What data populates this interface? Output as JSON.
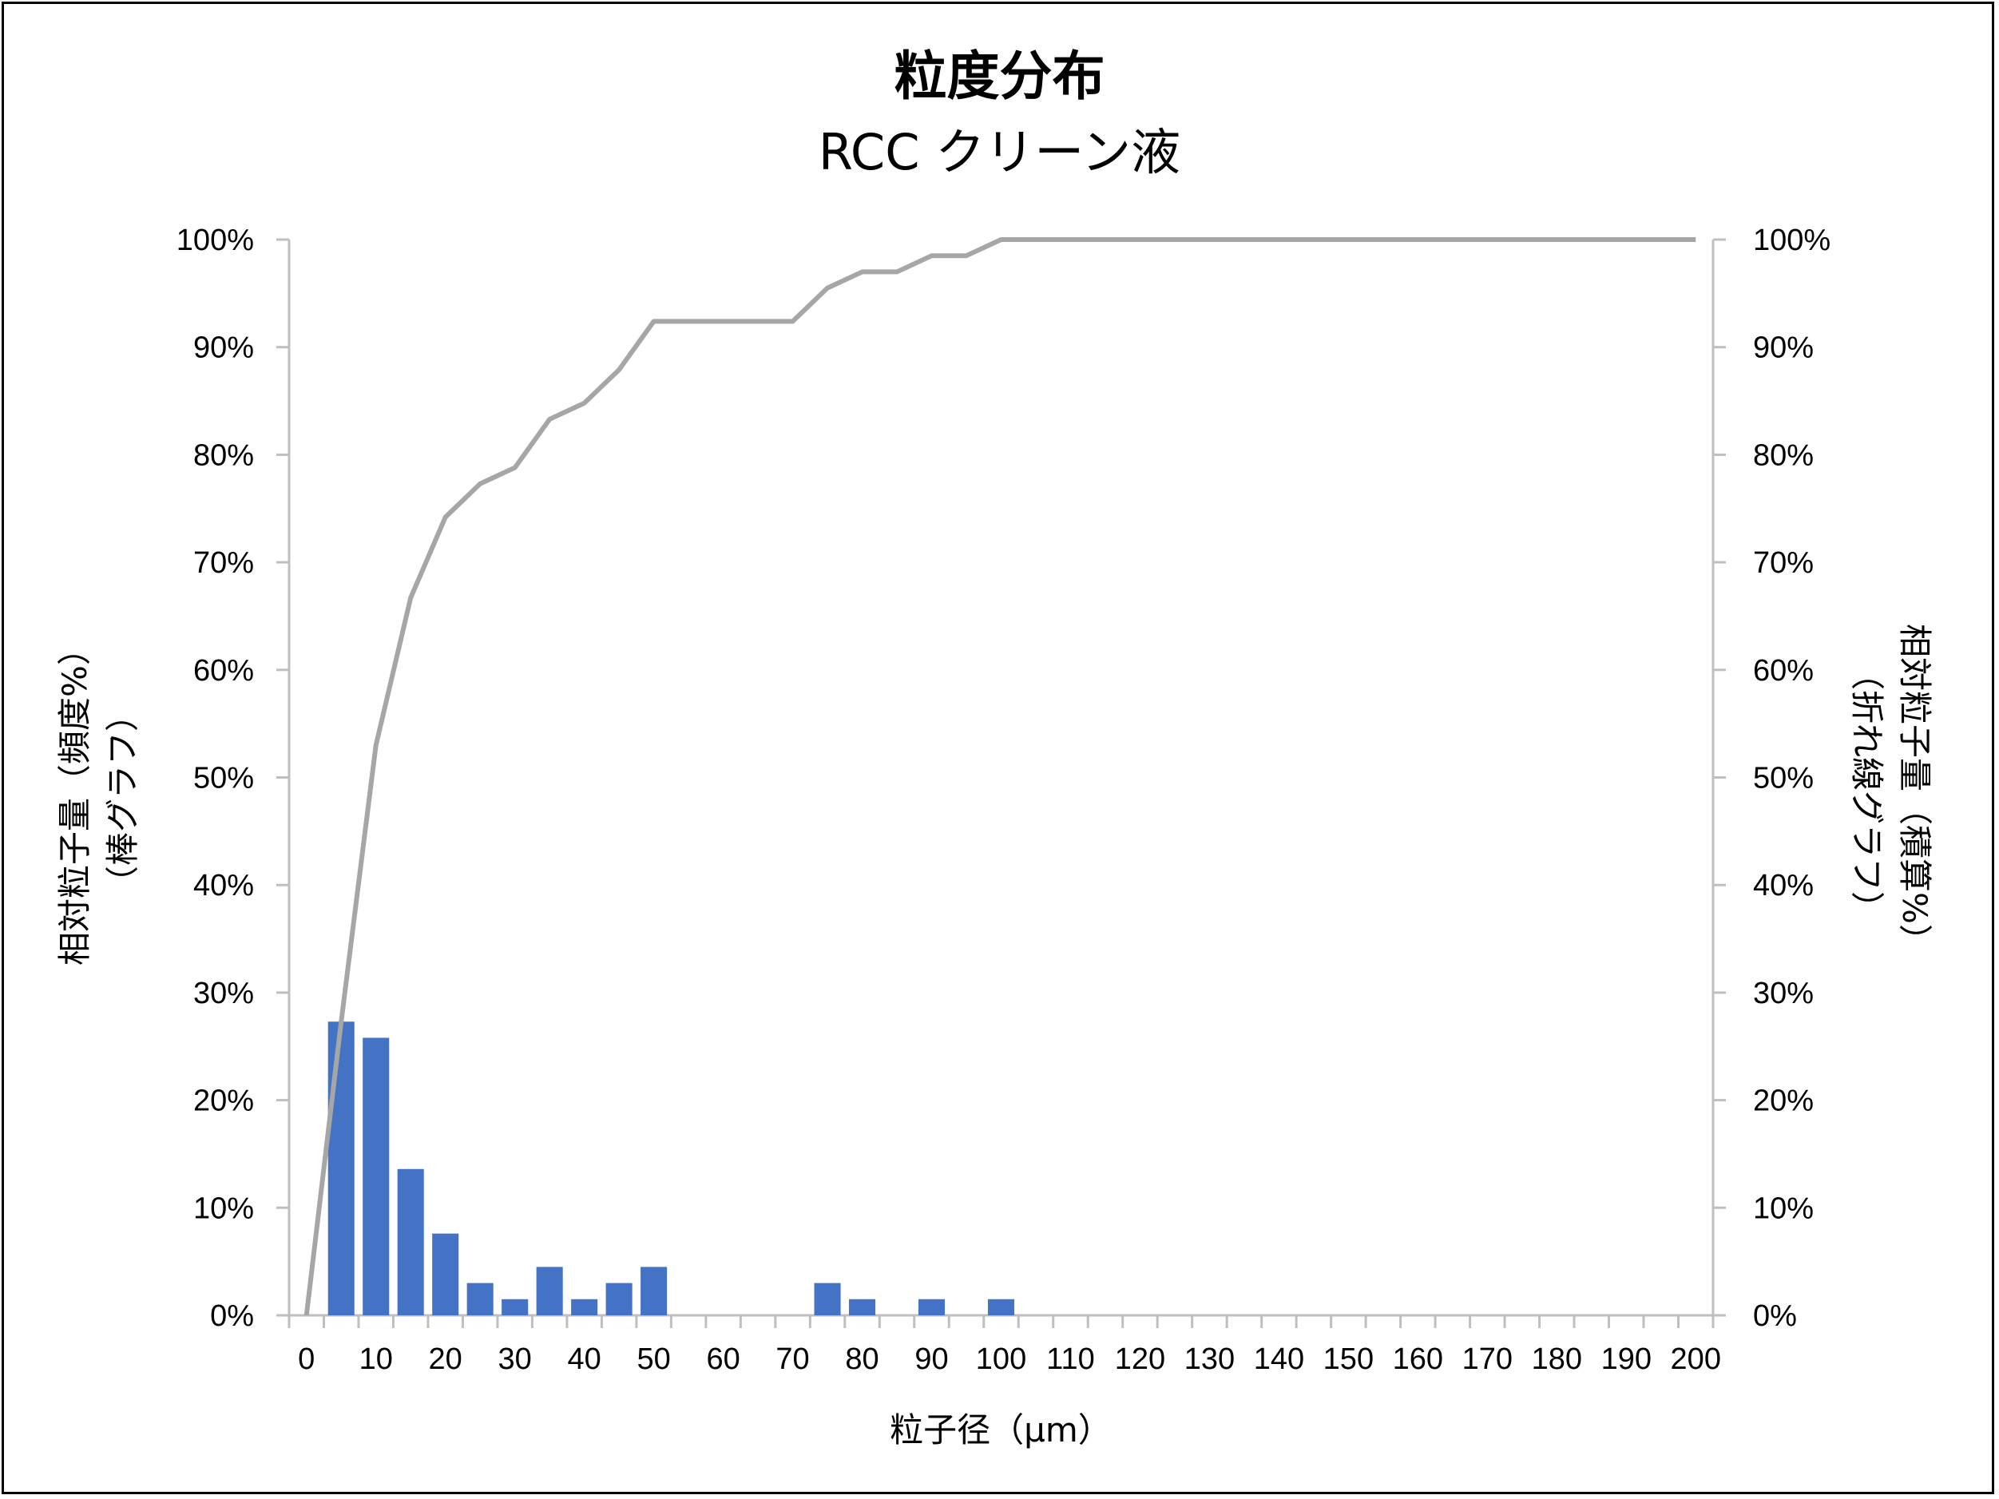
{
  "chart_data": {
    "type": "bar",
    "title": "粒度分布",
    "subtitle": "RCC クリーン液",
    "xlabel": "粒子径（μm）",
    "ylabel_left": [
      "相対粒子量（頻度%）",
      "（棒グラフ）"
    ],
    "ylabel_right": [
      "相対粒子量（積算%）",
      "（折れ線グラフ）"
    ],
    "x_ticks": [
      0,
      10,
      20,
      30,
      40,
      50,
      60,
      70,
      80,
      90,
      100,
      110,
      120,
      130,
      140,
      150,
      160,
      170,
      180,
      190,
      200
    ],
    "y_ticks": [
      "0%",
      "10%",
      "20%",
      "30%",
      "40%",
      "50%",
      "60%",
      "70%",
      "80%",
      "90%",
      "100%"
    ],
    "ylim": [
      0,
      100
    ],
    "xlim": [
      -2.5,
      202.5
    ],
    "grid": false,
    "colors": {
      "bar": "#4472C4",
      "line": "#A6A6A6",
      "axis": "#BFBFBF"
    },
    "series": [
      {
        "kind": "bar",
        "x": [
          5,
          10,
          15,
          20,
          25,
          30,
          35,
          40,
          45,
          50,
          55,
          60,
          65,
          70,
          75,
          80,
          85,
          90,
          95,
          100
        ],
        "values": [
          27.3,
          25.8,
          13.6,
          7.6,
          3.0,
          1.5,
          4.5,
          1.5,
          3.0,
          4.5,
          0,
          0,
          0,
          0,
          3.0,
          1.5,
          0,
          1.5,
          0,
          1.5
        ]
      },
      {
        "kind": "line",
        "x": [
          0,
          5,
          10,
          15,
          20,
          25,
          30,
          35,
          40,
          45,
          50,
          55,
          60,
          65,
          70,
          75,
          80,
          85,
          90,
          95,
          100,
          105,
          110,
          115,
          120,
          125,
          130,
          135,
          140,
          145,
          150,
          155,
          160,
          165,
          170,
          175,
          180,
          185,
          190,
          195,
          200
        ],
        "values": [
          0,
          27.3,
          53.0,
          66.7,
          74.2,
          77.3,
          78.8,
          83.3,
          84.8,
          87.9,
          92.4,
          92.4,
          92.4,
          92.4,
          92.4,
          95.5,
          97.0,
          97.0,
          98.5,
          98.5,
          100,
          100,
          100,
          100,
          100,
          100,
          100,
          100,
          100,
          100,
          100,
          100,
          100,
          100,
          100,
          100,
          100,
          100,
          100,
          100,
          100
        ]
      }
    ]
  }
}
